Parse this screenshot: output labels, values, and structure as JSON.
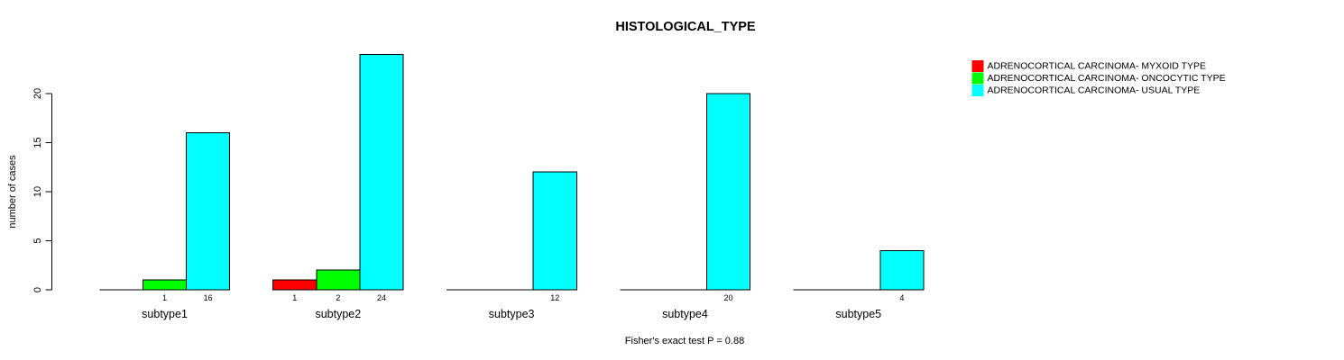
{
  "chart_data": {
    "type": "bar",
    "title": "HISTOLOGICAL_TYPE",
    "ylabel": "number of cases",
    "xlabel": "",
    "footnote": "Fisher's exact test P = 0.88",
    "categories": [
      "subtype1",
      "subtype2",
      "subtype3",
      "subtype4",
      "subtype5"
    ],
    "series": [
      {
        "key": "myxoid",
        "name": "ADRENOCORTICAL CARCINOMA- MYXOID TYPE",
        "color": "#ff0000",
        "values": [
          0,
          1,
          0,
          0,
          0
        ]
      },
      {
        "key": "oncocytic",
        "name": "ADRENOCORTICAL CARCINOMA- ONCOCYTIC TYPE",
        "color": "#00ff00",
        "values": [
          1,
          2,
          0,
          0,
          0
        ]
      },
      {
        "key": "usual",
        "name": "ADRENOCORTICAL CARCINOMA- USUAL TYPE",
        "color": "#00ffff",
        "values": [
          16,
          24,
          12,
          20,
          4
        ]
      }
    ],
    "yticks": [
      0,
      5,
      10,
      15,
      20
    ],
    "ylim": [
      0,
      24
    ],
    "grid": false,
    "legend_position": "top-right",
    "value_labels": "nonzero bars labeled below baseline",
    "bar_border_color": "#000000",
    "text_color": "#000000",
    "background_color": "#ffffff"
  }
}
